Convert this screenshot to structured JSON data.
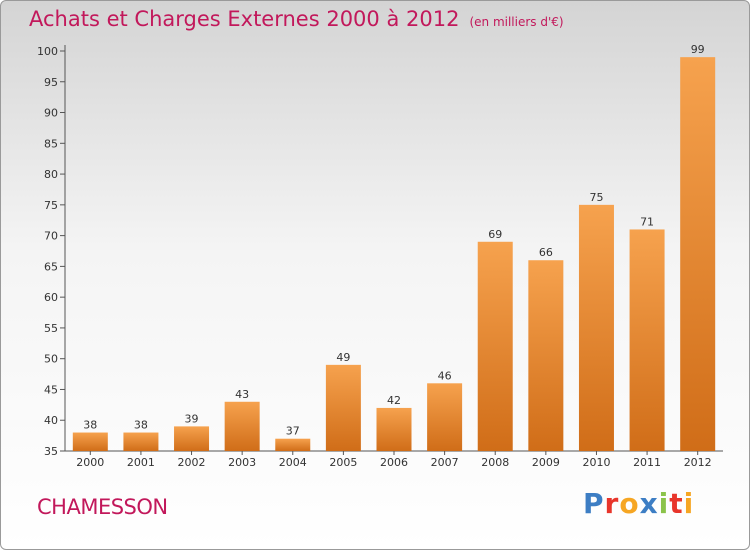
{
  "header": {
    "title": "Achats et Charges Externes 2000 à 2012",
    "unit": "(en milliers d'€)"
  },
  "footer": {
    "location": "CHAMESSON",
    "brand": "Proxiti"
  },
  "colors": {
    "title": "#c2185b",
    "bar_top": "#f6a24e",
    "bar_bottom": "#d06d18",
    "brand_letters": [
      "#3d7ec4",
      "#e8352b",
      "#f6a623",
      "#3d7ec4",
      "#8bc34a",
      "#e8352b",
      "#f6a623"
    ]
  },
  "chart_data": {
    "type": "bar",
    "title": "Achats et Charges Externes 2000 à 2012",
    "subtitle": "(en milliers d'€)",
    "categories": [
      "2000",
      "2001",
      "2002",
      "2003",
      "2004",
      "2005",
      "2006",
      "2007",
      "2008",
      "2009",
      "2010",
      "2011",
      "2012"
    ],
    "values": [
      38,
      38,
      39,
      43,
      37,
      49,
      42,
      46,
      69,
      66,
      75,
      71,
      99
    ],
    "ylim": [
      35,
      100
    ],
    "yticks": [
      35,
      40,
      45,
      50,
      55,
      60,
      65,
      70,
      75,
      80,
      85,
      90,
      95,
      100
    ],
    "grid": false,
    "data_labels": true
  }
}
